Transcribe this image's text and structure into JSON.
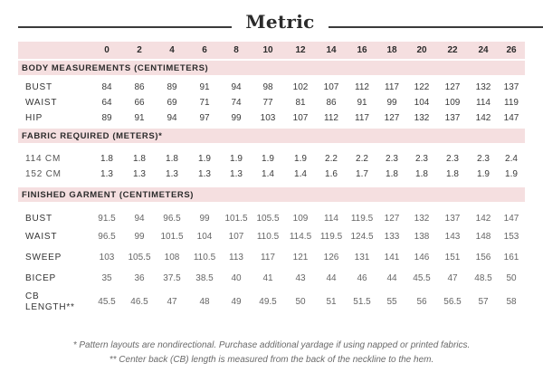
{
  "title": "Metric",
  "sizes": [
    "0",
    "2",
    "4",
    "6",
    "8",
    "10",
    "12",
    "14",
    "16",
    "18",
    "20",
    "22",
    "24",
    "26"
  ],
  "sections": [
    {
      "title": "BODY MEASUREMENTS (CENTIMETERS)",
      "rows": [
        {
          "label": "BUST",
          "values": [
            "84",
            "86",
            "89",
            "91",
            "94",
            "98",
            "102",
            "107",
            "112",
            "117",
            "122",
            "127",
            "132",
            "137"
          ]
        },
        {
          "label": "WAIST",
          "values": [
            "64",
            "66",
            "69",
            "71",
            "74",
            "77",
            "81",
            "86",
            "91",
            "99",
            "104",
            "109",
            "114",
            "119"
          ]
        },
        {
          "label": "HIP",
          "values": [
            "89",
            "91",
            "94",
            "97",
            "99",
            "103",
            "107",
            "112",
            "117",
            "127",
            "132",
            "137",
            "142",
            "147"
          ]
        }
      ]
    },
    {
      "title": "FABRIC REQUIRED (METERS)*",
      "rows": [
        {
          "label": "114 CM",
          "values": [
            "1.8",
            "1.8",
            "1.8",
            "1.9",
            "1.9",
            "1.9",
            "1.9",
            "2.2",
            "2.2",
            "2.3",
            "2.3",
            "2.3",
            "2.3",
            "2.4"
          ]
        },
        {
          "label": "152 CM",
          "values": [
            "1.3",
            "1.3",
            "1.3",
            "1.3",
            "1.3",
            "1.4",
            "1.4",
            "1.6",
            "1.7",
            "1.8",
            "1.8",
            "1.8",
            "1.9",
            "1.9"
          ]
        }
      ]
    },
    {
      "title": "FINISHED GARMENT (CENTIMETERS)",
      "rows": [
        {
          "label": "BUST",
          "values": [
            "91.5",
            "94",
            "96.5",
            "99",
            "101.5",
            "105.5",
            "109",
            "114",
            "119.5",
            "127",
            "132",
            "137",
            "142",
            "147"
          ]
        },
        {
          "label": "WAIST",
          "values": [
            "96.5",
            "99",
            "101.5",
            "104",
            "107",
            "110.5",
            "114.5",
            "119.5",
            "124.5",
            "133",
            "138",
            "143",
            "148",
            "153"
          ]
        },
        {
          "label": "SWEEP",
          "values": [
            "103",
            "105.5",
            "108",
            "110.5",
            "113",
            "117",
            "121",
            "126",
            "131",
            "141",
            "146",
            "151",
            "156",
            "161"
          ]
        },
        {
          "label": "BICEP",
          "values": [
            "35",
            "36",
            "37.5",
            "38.5",
            "40",
            "41",
            "43",
            "44",
            "46",
            "44",
            "45.5",
            "47",
            "48.5",
            "50"
          ]
        },
        {
          "label_line1": "CB",
          "label_line2": "LENGTH**",
          "values": [
            "45.5",
            "46.5",
            "47",
            "48",
            "49",
            "49.5",
            "50",
            "51",
            "51.5",
            "55",
            "56",
            "56.5",
            "57",
            "58"
          ]
        }
      ]
    }
  ],
  "footnotes": [
    "* Pattern layouts are nondirectional. Purchase additional yardage if using napped or printed fabrics.",
    "** Center back (CB) length is measured from the back of the neckline to the hem."
  ]
}
